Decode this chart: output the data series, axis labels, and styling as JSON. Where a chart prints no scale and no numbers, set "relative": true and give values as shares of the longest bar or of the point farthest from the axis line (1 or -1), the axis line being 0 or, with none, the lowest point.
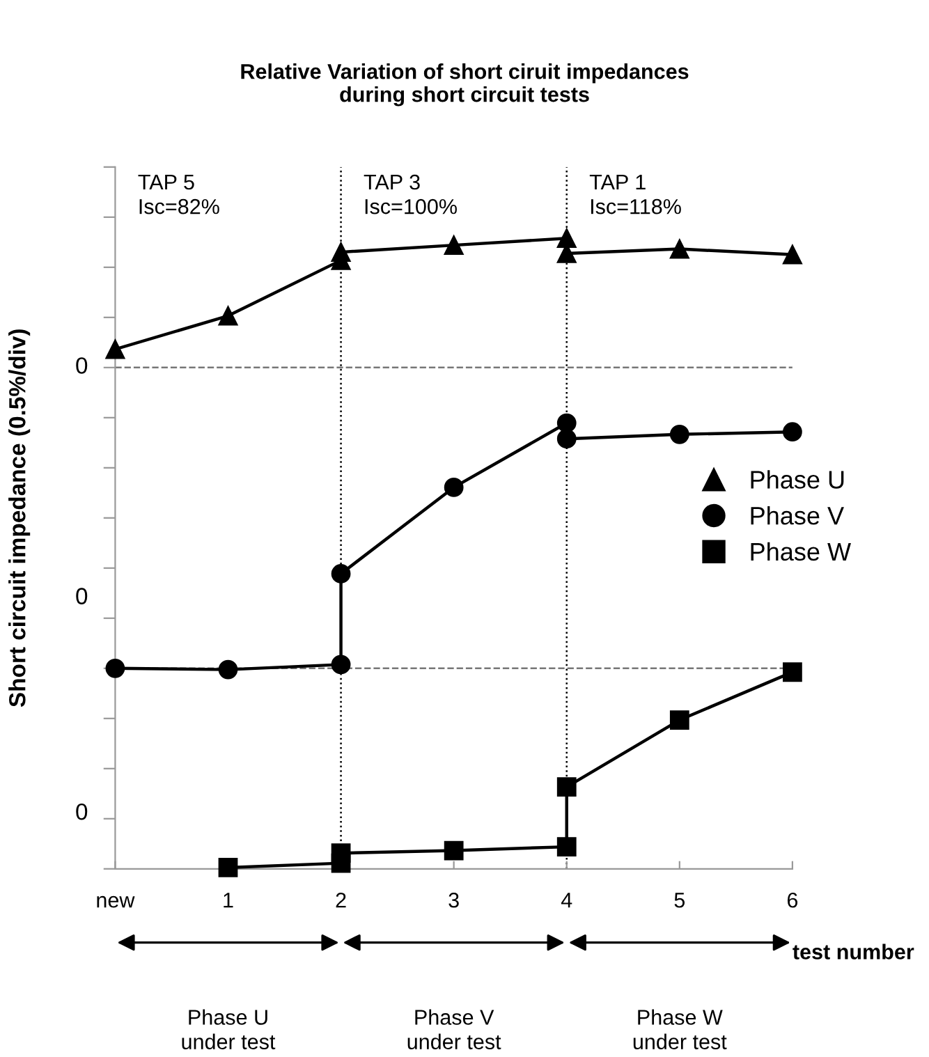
{
  "chart_data": {
    "type": "line",
    "title": "Relative Variation of short ciruit impedances\nduring short circuit tests",
    "xlabel": "test number",
    "ylabel": "Short circuit impedance (0.5%/div)",
    "relative": true,
    "xlim": [
      0,
      6
    ],
    "xticks": [
      {
        "value": 0,
        "label": "new"
      },
      1,
      2,
      3,
      4,
      5,
      6
    ],
    "series": [
      {
        "name": "Phase U",
        "color": "#000000",
        "marker": "triangle",
        "x": [
          0,
          1,
          2,
          2,
          3,
          4,
          4,
          5,
          6
        ],
        "values": [
          0.824,
          0.877,
          0.965,
          0.978,
          0.989,
          1,
          0.976,
          0.983,
          0.974
        ]
      },
      {
        "name": "Phase V",
        "color": "#000000",
        "marker": "circle",
        "x": [
          0,
          1,
          2,
          2,
          3,
          4,
          4,
          5,
          6
        ],
        "values": [
          0.318,
          0.316,
          0.324,
          0.468,
          0.605,
          0.707,
          0.682,
          0.689,
          0.693
        ]
      },
      {
        "name": "Phase W",
        "color": "#000000",
        "marker": "square",
        "x": [
          1,
          2,
          2,
          3,
          4,
          4,
          5,
          6
        ],
        "values": [
          0.002,
          0.009,
          0.025,
          0.029,
          0.035,
          0.13,
          0.236,
          0.312
        ]
      }
    ],
    "ref_lines": [
      {
        "axis": "x",
        "value": 2,
        "color": "#000000",
        "line_style": "dotted"
      },
      {
        "axis": "x",
        "value": 4,
        "color": "#000000",
        "line_style": "dotted"
      },
      {
        "axis": "y",
        "value": 0.795,
        "color": "#777777",
        "line_style": "dashed"
      },
      {
        "axis": "y",
        "value": 0.318,
        "color": "#777777",
        "line_style": "dashed"
      }
    ],
    "annotations": [
      "TAP 5\nIsc=82%",
      "TAP 3\nIsc=100%",
      "TAP 1\nIsc=118%",
      "Phase U\nunder test",
      "Phase V\nunder test",
      "Phase W\nunder test",
      "0",
      "0",
      "0"
    ],
    "legend": "right",
    "grid": false,
    "line_style": "solid"
  }
}
